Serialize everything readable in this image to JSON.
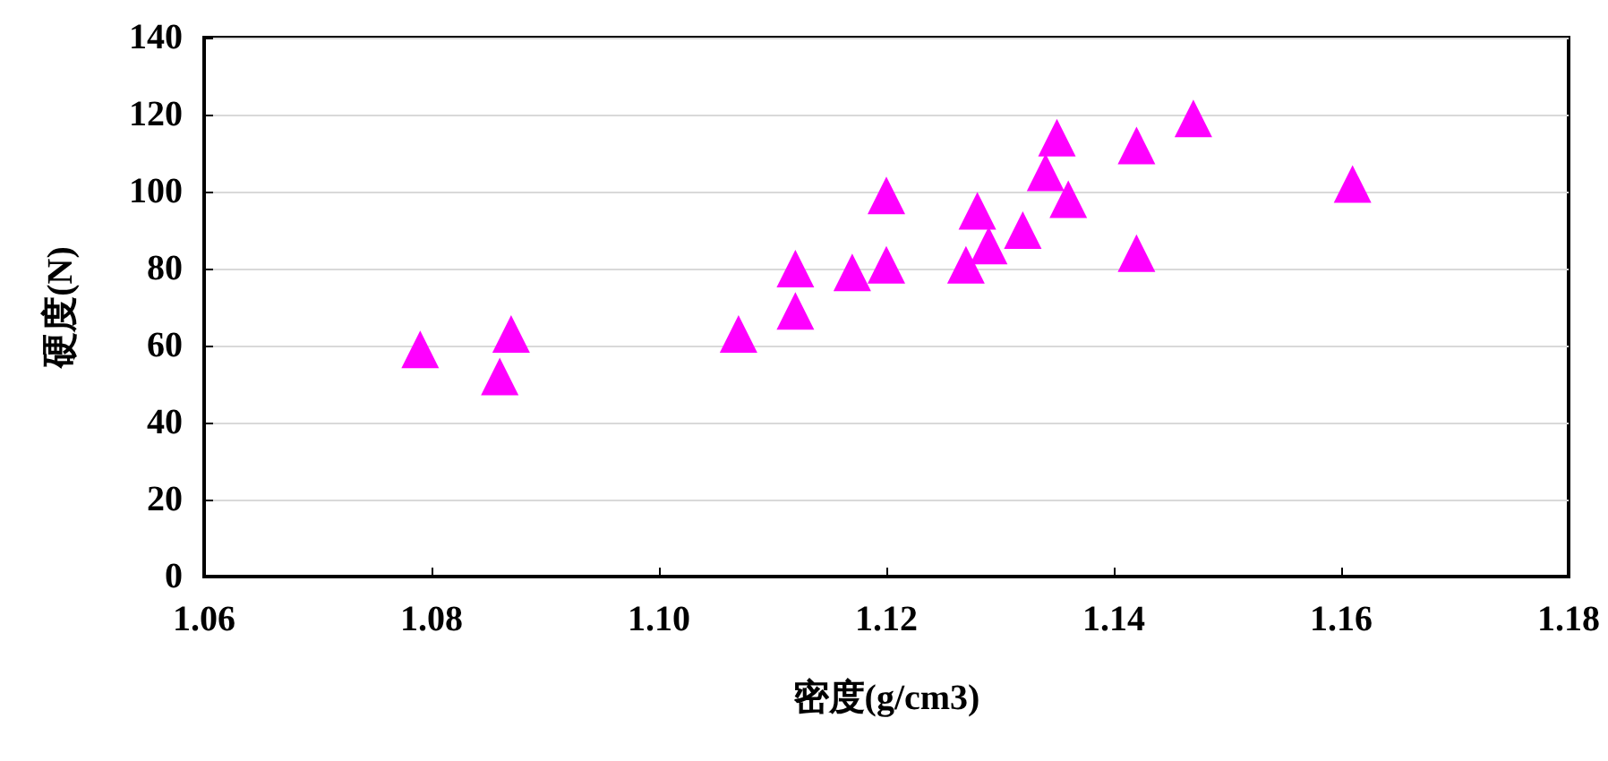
{
  "chart_data": {
    "type": "scatter",
    "xlabel": "密度(g/cm3)",
    "ylabel": "硬度(N)",
    "x": [
      1.079,
      1.086,
      1.087,
      1.107,
      1.112,
      1.112,
      1.117,
      1.12,
      1.12,
      1.127,
      1.128,
      1.129,
      1.132,
      1.134,
      1.135,
      1.136,
      1.142,
      1.142,
      1.147,
      1.161
    ],
    "series": [
      {
        "color": "#ff00ff",
        "values": [
          59,
          52,
          63,
          63,
          80,
          69,
          79,
          99,
          81,
          81,
          95,
          86,
          90,
          105,
          114,
          98,
          84,
          112,
          119,
          102
        ]
      }
    ],
    "xlim": [
      1.06,
      1.18
    ],
    "xticks": [
      1.06,
      1.08,
      {
        "value": 1.1,
        "label": "1.10"
      },
      1.12,
      1.14,
      1.16,
      1.18
    ],
    "ylim": [
      0,
      140
    ],
    "yticks": [
      0,
      20,
      40,
      60,
      80,
      100,
      120,
      140
    ],
    "grid": "y",
    "marker": "triangle"
  }
}
